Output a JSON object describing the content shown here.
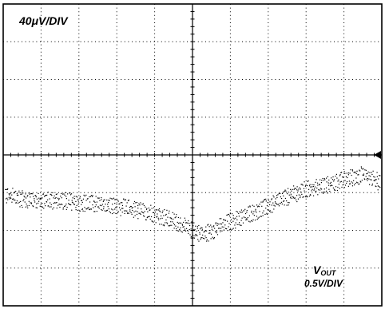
{
  "chart_data": {
    "type": "scatter",
    "grid": true,
    "divisions": {
      "x": 10,
      "y": 8
    },
    "xlim": [
      0,
      10
    ],
    "ylim": [
      -4,
      4
    ],
    "series": [
      {
        "name": "",
        "style": "dense dotted band (two interleaved noisy traces)",
        "x": [
          0.0,
          0.5,
          1.0,
          1.5,
          2.0,
          2.5,
          3.0,
          3.5,
          4.0,
          4.5,
          5.0,
          5.3,
          5.6,
          6.0,
          6.5,
          7.0,
          7.5,
          8.0,
          8.5,
          9.0,
          9.5,
          9.9
        ],
        "y": [
          -1.05,
          -1.15,
          -1.2,
          -1.2,
          -1.25,
          -1.3,
          -1.35,
          -1.45,
          -1.55,
          -1.75,
          -2.0,
          -2.1,
          -1.95,
          -1.75,
          -1.55,
          -1.35,
          -1.1,
          -0.9,
          -0.8,
          -0.65,
          -0.5,
          -0.7
        ]
      }
    ],
    "annotations": {
      "vertical_scale": "40μV/DIV",
      "trace_name": "V",
      "trace_name_sub": "OUT",
      "horizontal_scale": "0.5V/DIV"
    },
    "marker_color": "#000000",
    "background": "#ffffff"
  }
}
